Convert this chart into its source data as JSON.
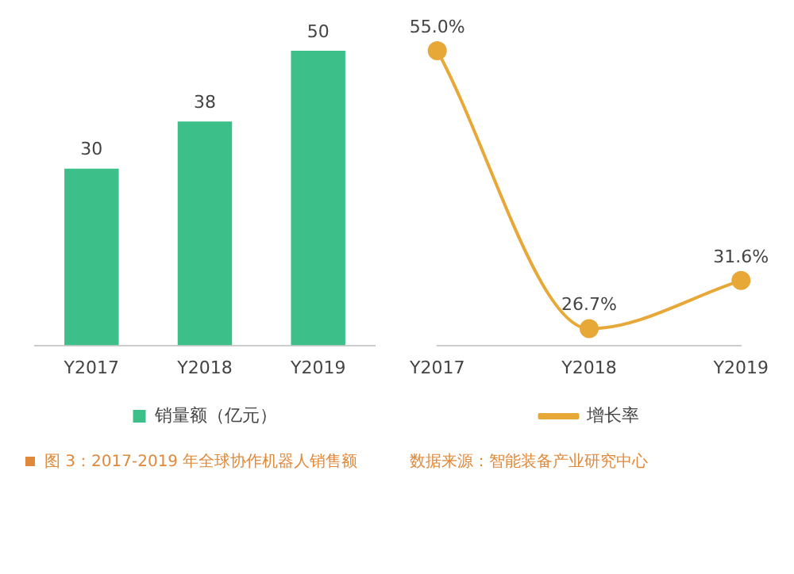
{
  "chart_data": [
    {
      "type": "bar",
      "categories": [
        "Y2017",
        "Y2018",
        "Y2019"
      ],
      "series": [
        {
          "name": "销量额（亿元）",
          "color": "#3dbf8a",
          "values": [
            30,
            38,
            50
          ]
        }
      ],
      "data_labels": true,
      "legend": "bottom",
      "annotations": [
        "图 3：2017-2019 年全球协作机器人销售额"
      ]
    },
    {
      "type": "line",
      "categories": [
        "Y2017",
        "Y2018",
        "Y2019"
      ],
      "series": [
        {
          "name": "增长率",
          "color": "#e8a838",
          "values": [
            55.0,
            26.7,
            31.6
          ],
          "value_labels": [
            "55.0%",
            "26.7%",
            "31.6%"
          ]
        }
      ],
      "marker": "circle",
      "legend": "bottom",
      "annotations": [
        "数据来源：智能装备产业研究中心"
      ]
    }
  ]
}
